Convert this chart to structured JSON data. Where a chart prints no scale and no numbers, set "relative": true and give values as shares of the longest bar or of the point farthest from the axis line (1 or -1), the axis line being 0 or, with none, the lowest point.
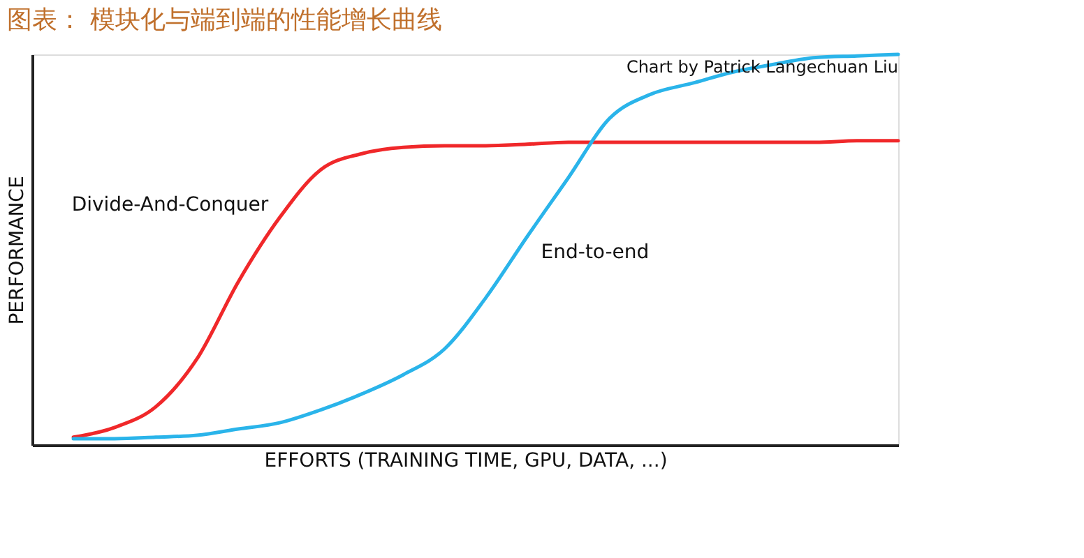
{
  "chart_data": {
    "type": "line",
    "title": "图表： 模块化与端到端的性能增长曲线",
    "xlabel": "EFFORTS (TRAINING TIME, GPU, DATA, ...)",
    "ylabel": "PERFORMANCE",
    "annotations": [
      "Chart by Patrick Langechuan Liu"
    ],
    "categories": [
      null,
      null,
      null,
      null,
      null,
      null,
      null,
      null,
      null,
      null,
      null,
      null,
      null,
      null,
      null,
      null,
      null,
      null,
      null,
      null,
      null
    ],
    "relative": true,
    "legend": false,
    "grid": false,
    "series": [
      {
        "name": "Divide-And-Conquer",
        "color": "#f0282a",
        "values": [
          0.02,
          0.045,
          0.098,
          0.221,
          0.418,
          0.582,
          0.705,
          0.746,
          0.762,
          0.766,
          0.766,
          0.77,
          0.775,
          0.775,
          0.775,
          0.775,
          0.775,
          0.775,
          0.775,
          0.779,
          0.779
        ]
      },
      {
        "name": "End-to-end",
        "color": "#2ab4ea",
        "values": [
          0.016,
          0.016,
          0.02,
          0.025,
          0.041,
          0.057,
          0.09,
          0.131,
          0.18,
          0.246,
          0.377,
          0.533,
          0.684,
          0.836,
          0.898,
          0.926,
          0.955,
          0.975,
          0.992,
          0.996,
          1.0
        ]
      }
    ]
  }
}
